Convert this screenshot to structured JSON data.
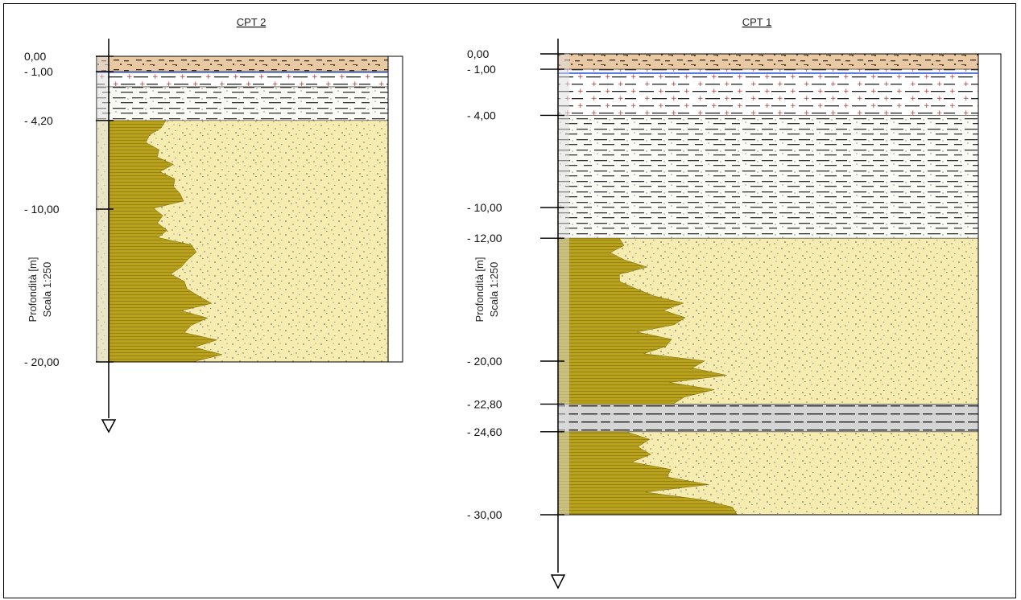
{
  "profiles": [
    {
      "id": "cpt2",
      "title": "CPT 2",
      "axis_label_1": "Profondità [m]",
      "axis_label_2": "Scala 1:250",
      "depth_labels": [
        "0,00",
        "- 1,00",
        "- 4,20",
        "- 10,00",
        "- 20,00"
      ],
      "depths_m": [
        0,
        1.0,
        4.2,
        10.0,
        20.0
      ],
      "max_depth_m": 20,
      "layers": [
        {
          "from": 0.0,
          "to": 1.0,
          "type": "fill",
          "unit": "S0"
        },
        {
          "from": 1.0,
          "to": 2.0,
          "type": "clay",
          "unit": "S1"
        },
        {
          "from": 2.0,
          "to": 4.2,
          "type": "silt",
          "unit": "S2"
        },
        {
          "from": 4.2,
          "to": 20.0,
          "type": "sand",
          "unit": "S3"
        }
      ]
    },
    {
      "id": "cpt1",
      "title": "CPT 1",
      "axis_label_1": "Profondità [m]",
      "axis_label_2": "Scala 1:250",
      "depth_labels": [
        "0,00",
        "- 1,00",
        "- 4,00",
        "- 10,00",
        "- 12,00",
        "- 20,00",
        "- 22,80",
        "- 24,60",
        "- 30,00"
      ],
      "depths_m": [
        0,
        1.0,
        4.0,
        10.0,
        12.0,
        20.0,
        22.8,
        24.6,
        30.0
      ],
      "max_depth_m": 30,
      "layers": [
        {
          "from": 0.0,
          "to": 1.0,
          "type": "fill",
          "unit": "S0"
        },
        {
          "from": 1.0,
          "to": 4.0,
          "type": "clay",
          "unit": "S1"
        },
        {
          "from": 4.0,
          "to": 12.0,
          "type": "silt",
          "unit": "S2"
        },
        {
          "from": 12.0,
          "to": 22.8,
          "type": "sand",
          "unit": "S3"
        },
        {
          "from": 22.8,
          "to": 24.6,
          "type": "grey",
          "unit": "S4"
        },
        {
          "from": 24.6,
          "to": 30.0,
          "type": "sand",
          "unit": "S5"
        }
      ]
    }
  ],
  "colors": {
    "sand": "#f6ecb0",
    "cpt_trace": "#b8a11c",
    "fill": "#e9c9a3",
    "clay": "#ffffff",
    "silt": "#fbfbf6",
    "grey": "#d4d4d4",
    "water_line": "#4169e1",
    "axis": "#000000"
  }
}
